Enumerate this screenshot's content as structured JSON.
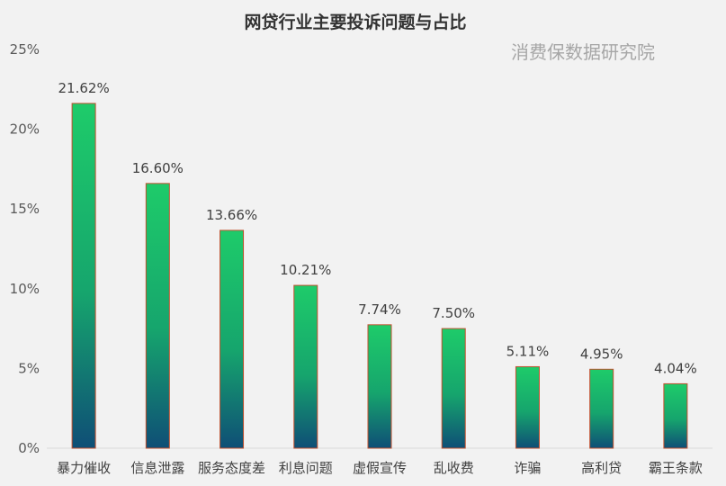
{
  "chart_data": {
    "type": "bar",
    "title": "网贷行业主要投诉问题与占比",
    "watermark": "消费保数据研究院",
    "categories": [
      "暴力催收",
      "信息泄露",
      "服务态度差",
      "利息问题",
      "虚假宣传",
      "乱收费",
      "诈骗",
      "高利贷",
      "霸王条款"
    ],
    "values": [
      21.62,
      16.6,
      13.66,
      10.21,
      7.74,
      7.5,
      5.11,
      4.95,
      4.04
    ],
    "data_labels": [
      "21.62%",
      "16.60%",
      "13.66%",
      "10.21%",
      "7.74%",
      "7.50%",
      "5.11%",
      "4.95%",
      "4.04%"
    ],
    "y_ticks": [
      0,
      5,
      10,
      15,
      20,
      25
    ],
    "y_tick_labels": [
      "0%",
      "5%",
      "10%",
      "15%",
      "20%",
      "25%"
    ],
    "ylim": [
      0,
      25
    ],
    "xlabel": "",
    "ylabel": "",
    "grid": false,
    "legend": "none",
    "colors": {
      "bar_top": "#1ecb6a",
      "bar_bottom": "#0f4e76",
      "bar_border": "#c0502e",
      "background": "#f2f2f2",
      "axis": "#d9d9d9"
    }
  }
}
